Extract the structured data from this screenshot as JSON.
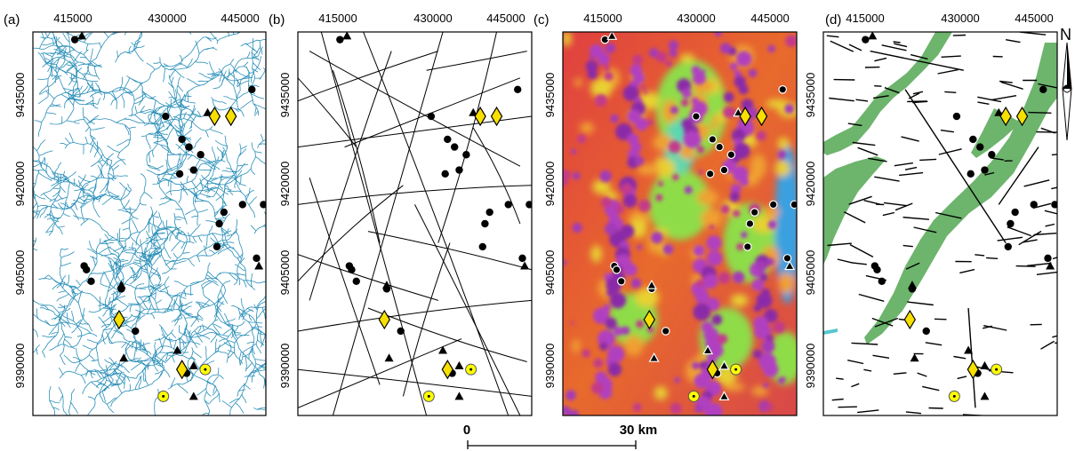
{
  "panels": [
    {
      "label": "(a)",
      "theme": "drainage network"
    },
    {
      "label": "(b)",
      "theme": "lineaments"
    },
    {
      "label": "(c)",
      "theme": "magnetic anomaly"
    },
    {
      "label": "(d)",
      "theme": "geologic structures"
    }
  ],
  "x_ticks": [
    "415000",
    "430000",
    "445000"
  ],
  "y_ticks": [
    "9435000",
    "9420000",
    "9405000",
    "9390000"
  ],
  "north_label": "N",
  "scale_bar": {
    "start_label": "0",
    "end_label": "30 km"
  },
  "colors": {
    "drainage": "#2a8fb8",
    "lineament": "#000000",
    "belt": "#6db46d",
    "diamond_fill": "#f7e000",
    "target_fill": "#ffff00",
    "frame": "#000000"
  },
  "symbols": {
    "diamond": "deposit-diamond",
    "circle": "occurrence-circle",
    "triangle": "occurrence-triangle",
    "target": "target-circle"
  },
  "features": {
    "circles": [
      [
        0.18,
        0.02
      ],
      [
        0.57,
        0.22
      ],
      [
        0.64,
        0.28
      ],
      [
        0.67,
        0.3
      ],
      [
        0.72,
        0.32
      ],
      [
        0.69,
        0.36
      ],
      [
        0.63,
        0.37
      ],
      [
        0.94,
        0.15
      ],
      [
        0.9,
        0.45
      ],
      [
        0.99,
        0.45
      ],
      [
        0.82,
        0.47
      ],
      [
        0.8,
        0.5
      ],
      [
        0.79,
        0.56
      ],
      [
        0.96,
        0.59
      ],
      [
        0.22,
        0.61
      ],
      [
        0.23,
        0.62
      ],
      [
        0.25,
        0.65
      ],
      [
        0.38,
        0.67
      ],
      [
        0.44,
        0.78
      ],
      [
        0.66,
        0.89
      ]
    ],
    "triangles": [
      [
        0.21,
        0.01
      ],
      [
        0.75,
        0.21
      ],
      [
        0.38,
        0.66
      ],
      [
        0.39,
        0.85
      ],
      [
        0.62,
        0.83
      ],
      [
        0.69,
        0.87
      ],
      [
        0.69,
        0.95
      ],
      [
        0.97,
        0.61
      ]
    ],
    "diamonds": [
      [
        0.78,
        0.22
      ],
      [
        0.85,
        0.22
      ],
      [
        0.37,
        0.75
      ],
      [
        0.64,
        0.88
      ]
    ],
    "targets": [
      [
        0.74,
        0.88
      ],
      [
        0.56,
        0.95
      ]
    ]
  }
}
